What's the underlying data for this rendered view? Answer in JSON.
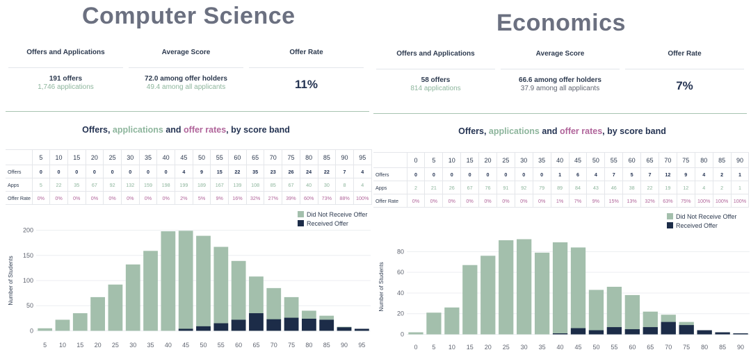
{
  "panels": {
    "cs": {
      "title": "Computer Science",
      "kpi": {
        "headers": [
          "Offers and Applications",
          "Average Score",
          "Offer Rate"
        ],
        "offers": "191 offers",
        "applications": "1,746 applications",
        "avg_offer": "72.0 among offer holders",
        "avg_all": "49.4 among all applicants",
        "rate": "11%"
      },
      "subtitle": {
        "a": "Offers, ",
        "b": "applications",
        "c": " and ",
        "d": "offer rates",
        "e": ", by score band"
      },
      "table": {
        "row_labels": [
          "Offers",
          "Apps",
          "Offer Rate"
        ],
        "bands": [
          "5",
          "10",
          "15",
          "20",
          "25",
          "30",
          "35",
          "40",
          "45",
          "50",
          "55",
          "60",
          "65",
          "70",
          "75",
          "80",
          "85",
          "90",
          "95"
        ],
        "offers": [
          "0",
          "0",
          "0",
          "0",
          "0",
          "0",
          "0",
          "0",
          "4",
          "9",
          "15",
          "22",
          "35",
          "23",
          "26",
          "24",
          "22",
          "7",
          "4"
        ],
        "apps": [
          "5",
          "22",
          "35",
          "67",
          "92",
          "132",
          "159",
          "198",
          "199",
          "189",
          "167",
          "139",
          "108",
          "85",
          "67",
          "40",
          "30",
          "8",
          "4"
        ],
        "rates": [
          "0%",
          "0%",
          "0%",
          "0%",
          "0%",
          "0%",
          "0%",
          "0%",
          "2%",
          "5%",
          "9%",
          "16%",
          "32%",
          "27%",
          "39%",
          "60%",
          "73%",
          "88%",
          "100%"
        ]
      }
    },
    "ec": {
      "title": "Economics",
      "kpi": {
        "headers": [
          "Offers and Applications",
          "Average Score",
          "Offer Rate"
        ],
        "offers": "58 offers",
        "applications": "814 applications",
        "avg_offer": "66.6 among offer holders",
        "avg_all": "37.9 among all applicants",
        "rate": "7%"
      },
      "subtitle": {
        "a": "Offers, ",
        "b": "applications",
        "c": " and ",
        "d": "offer rates",
        "e": ", by score band"
      },
      "table": {
        "row_labels": [
          "Offers",
          "Apps",
          "Offer Rate"
        ],
        "bands": [
          "0",
          "5",
          "10",
          "15",
          "20",
          "25",
          "30",
          "35",
          "40",
          "45",
          "50",
          "55",
          "60",
          "65",
          "70",
          "75",
          "80",
          "85",
          "90"
        ],
        "offers": [
          "0",
          "0",
          "0",
          "0",
          "0",
          "0",
          "0",
          "0",
          "1",
          "6",
          "4",
          "7",
          "5",
          "7",
          "12",
          "9",
          "4",
          "2",
          "1"
        ],
        "apps": [
          "2",
          "21",
          "26",
          "67",
          "76",
          "91",
          "92",
          "79",
          "89",
          "84",
          "43",
          "46",
          "38",
          "22",
          "19",
          "12",
          "4",
          "2",
          "1"
        ],
        "rates": [
          "0%",
          "0%",
          "0%",
          "0%",
          "0%",
          "0%",
          "0%",
          "0%",
          "1%",
          "7%",
          "9%",
          "15%",
          "13%",
          "32%",
          "63%",
          "75%",
          "100%",
          "100%",
          "100%"
        ]
      }
    }
  },
  "chart_data": [
    {
      "type": "bar",
      "stacked": false,
      "categories": [
        5,
        10,
        15,
        20,
        25,
        30,
        35,
        40,
        45,
        50,
        55,
        60,
        65,
        70,
        75,
        80,
        85,
        90,
        95
      ],
      "series": [
        {
          "name": "Did Not Receive Offer",
          "color": "#a3bfac",
          "values": [
            5,
            22,
            35,
            67,
            92,
            132,
            159,
            198,
            199,
            189,
            167,
            139,
            108,
            85,
            67,
            40,
            30,
            8,
            4
          ]
        },
        {
          "name": "Received Offer",
          "color": "#1c2c48",
          "values": [
            0,
            0,
            0,
            0,
            0,
            0,
            0,
            0,
            4,
            9,
            15,
            22,
            35,
            23,
            26,
            24,
            22,
            7,
            4
          ]
        }
      ],
      "ylabel": "Number of Students",
      "ylim": [
        -5,
        205
      ],
      "yticks": [
        0,
        50,
        100,
        150,
        200
      ],
      "legend": "top-right"
    },
    {
      "type": "bar",
      "stacked": false,
      "categories": [
        0,
        5,
        10,
        15,
        20,
        25,
        30,
        35,
        40,
        45,
        50,
        55,
        60,
        65,
        70,
        75,
        80,
        85,
        90
      ],
      "series": [
        {
          "name": "Did Not Receive Offer",
          "color": "#a3bfac",
          "values": [
            2,
            21,
            26,
            67,
            76,
            91,
            92,
            79,
            89,
            84,
            43,
            46,
            38,
            22,
            19,
            12,
            4,
            2,
            1
          ]
        },
        {
          "name": "Received Offer",
          "color": "#1c2c48",
          "values": [
            0,
            0,
            0,
            0,
            0,
            0,
            0,
            0,
            1,
            6,
            4,
            7,
            5,
            7,
            12,
            9,
            4,
            2,
            1
          ]
        }
      ],
      "ylabel": "Number of Students",
      "ylim": [
        -3,
        95
      ],
      "yticks": [
        0,
        20,
        40,
        60,
        80
      ],
      "legend": "top-right"
    }
  ]
}
